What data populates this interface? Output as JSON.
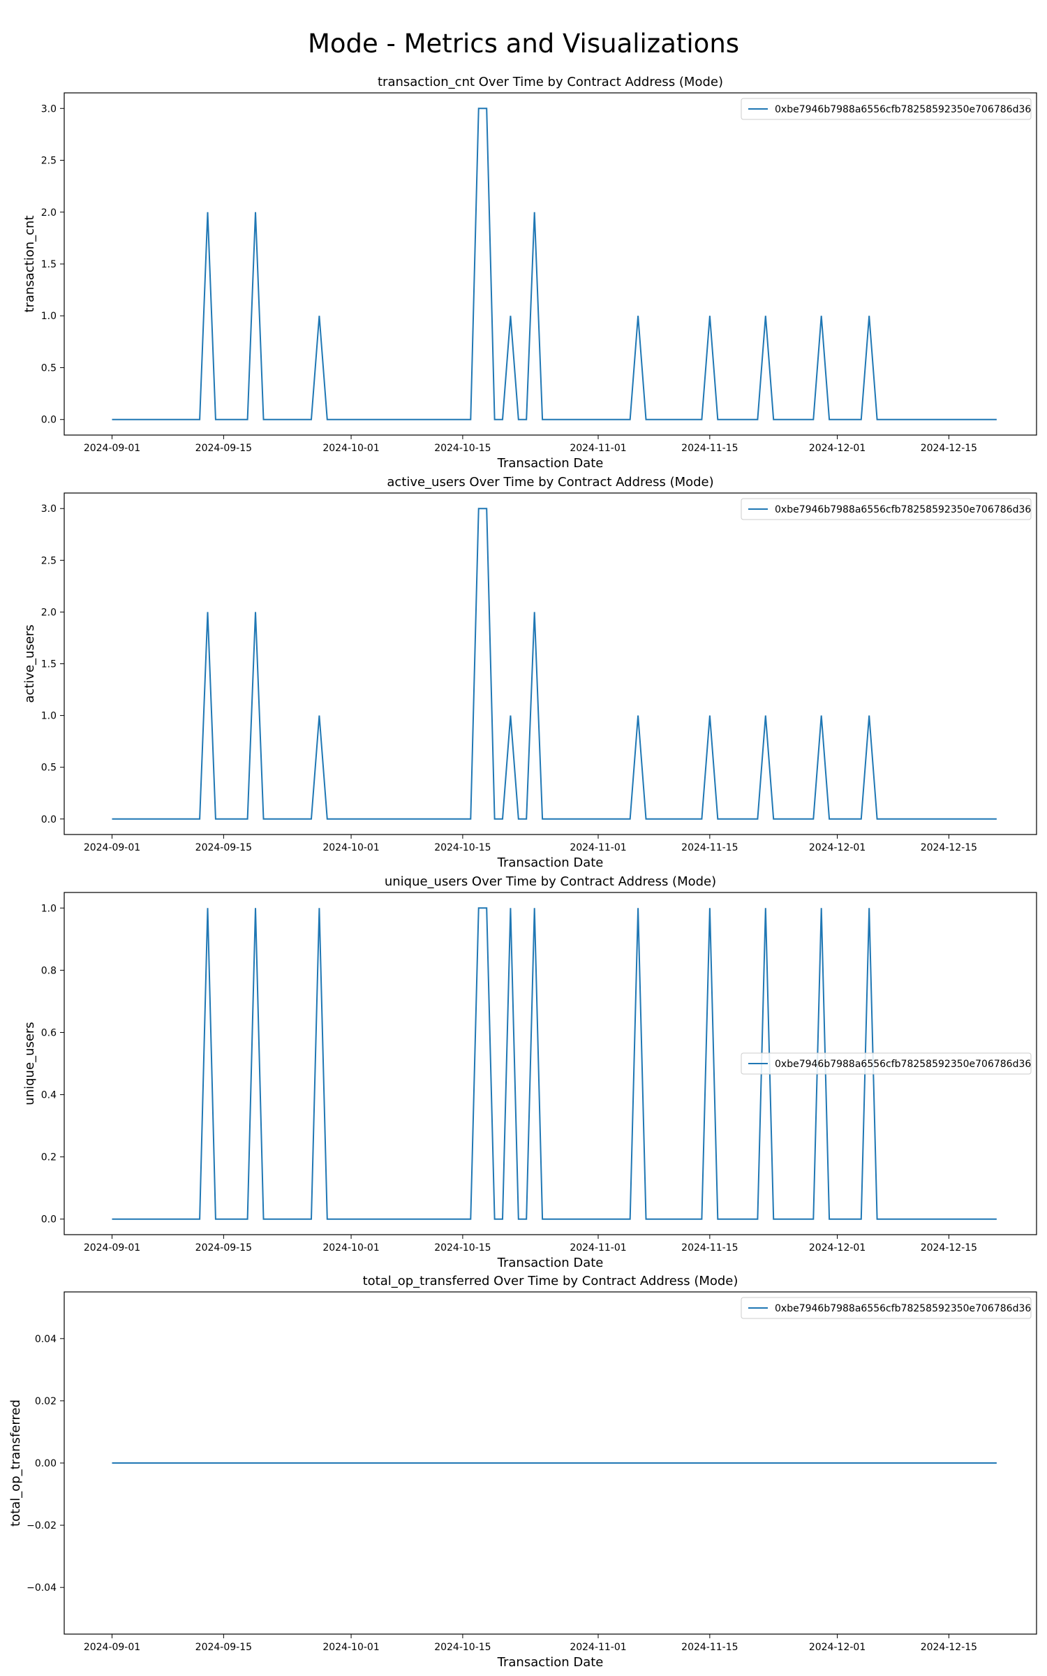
{
  "figure_title": "Mode - Metrics and Visualizations",
  "colors": {
    "series": "#1f77b4",
    "axis": "#000000",
    "legend_border": "#cccccc"
  },
  "chart_data": [
    {
      "type": "line",
      "title": "transaction_cnt Over Time by Contract Address (Mode)",
      "xlabel": "Transaction Date",
      "ylabel": "transaction_cnt",
      "x_type": "date",
      "xlim": [
        "2024-08-26",
        "2024-12-26"
      ],
      "ylim": [
        -0.15,
        3.15
      ],
      "x_ticks": [
        "2024-09-01",
        "2024-09-15",
        "2024-10-01",
        "2024-10-15",
        "2024-11-01",
        "2024-11-15",
        "2024-12-01",
        "2024-12-15"
      ],
      "y_ticks": [
        0.0,
        0.5,
        1.0,
        1.5,
        2.0,
        2.5,
        3.0
      ],
      "y_tick_labels": [
        "0.0",
        "0.5",
        "1.0",
        "1.5",
        "2.0",
        "2.5",
        "3.0"
      ],
      "grid": false,
      "legend_position": "top-right",
      "series": [
        {
          "name": "0xbe7946b7988a6556cfb78258592350e706786d36",
          "points": [
            [
              "2024-09-01",
              0
            ],
            [
              "2024-09-12",
              0
            ],
            [
              "2024-09-13",
              2
            ],
            [
              "2024-09-14",
              0
            ],
            [
              "2024-09-18",
              0
            ],
            [
              "2024-09-19",
              2
            ],
            [
              "2024-09-20",
              0
            ],
            [
              "2024-09-26",
              0
            ],
            [
              "2024-09-27",
              1
            ],
            [
              "2024-09-28",
              0
            ],
            [
              "2024-10-16",
              0
            ],
            [
              "2024-10-17",
              3
            ],
            [
              "2024-10-18",
              3
            ],
            [
              "2024-10-19",
              0
            ],
            [
              "2024-10-20",
              0
            ],
            [
              "2024-10-21",
              1
            ],
            [
              "2024-10-22",
              0
            ],
            [
              "2024-10-23",
              0
            ],
            [
              "2024-10-24",
              2
            ],
            [
              "2024-10-25",
              0
            ],
            [
              "2024-11-05",
              0
            ],
            [
              "2024-11-06",
              1
            ],
            [
              "2024-11-07",
              0
            ],
            [
              "2024-11-14",
              0
            ],
            [
              "2024-11-15",
              1
            ],
            [
              "2024-11-16",
              0
            ],
            [
              "2024-11-21",
              0
            ],
            [
              "2024-11-22",
              1
            ],
            [
              "2024-11-23",
              0
            ],
            [
              "2024-11-28",
              0
            ],
            [
              "2024-11-29",
              1
            ],
            [
              "2024-11-30",
              0
            ],
            [
              "2024-12-04",
              0
            ],
            [
              "2024-12-05",
              1
            ],
            [
              "2024-12-06",
              0
            ],
            [
              "2024-12-21",
              0
            ]
          ]
        }
      ]
    },
    {
      "type": "line",
      "title": "active_users Over Time by Contract Address (Mode)",
      "xlabel": "Transaction Date",
      "ylabel": "active_users",
      "x_type": "date",
      "xlim": [
        "2024-08-26",
        "2024-12-26"
      ],
      "ylim": [
        -0.15,
        3.15
      ],
      "x_ticks": [
        "2024-09-01",
        "2024-09-15",
        "2024-10-01",
        "2024-10-15",
        "2024-11-01",
        "2024-11-15",
        "2024-12-01",
        "2024-12-15"
      ],
      "y_ticks": [
        0.0,
        0.5,
        1.0,
        1.5,
        2.0,
        2.5,
        3.0
      ],
      "y_tick_labels": [
        "0.0",
        "0.5",
        "1.0",
        "1.5",
        "2.0",
        "2.5",
        "3.0"
      ],
      "grid": false,
      "legend_position": "top-right",
      "series": [
        {
          "name": "0xbe7946b7988a6556cfb78258592350e706786d36",
          "points": [
            [
              "2024-09-01",
              0
            ],
            [
              "2024-09-12",
              0
            ],
            [
              "2024-09-13",
              2
            ],
            [
              "2024-09-14",
              0
            ],
            [
              "2024-09-18",
              0
            ],
            [
              "2024-09-19",
              2
            ],
            [
              "2024-09-20",
              0
            ],
            [
              "2024-09-26",
              0
            ],
            [
              "2024-09-27",
              1
            ],
            [
              "2024-09-28",
              0
            ],
            [
              "2024-10-16",
              0
            ],
            [
              "2024-10-17",
              3
            ],
            [
              "2024-10-18",
              3
            ],
            [
              "2024-10-19",
              0
            ],
            [
              "2024-10-20",
              0
            ],
            [
              "2024-10-21",
              1
            ],
            [
              "2024-10-22",
              0
            ],
            [
              "2024-10-23",
              0
            ],
            [
              "2024-10-24",
              2
            ],
            [
              "2024-10-25",
              0
            ],
            [
              "2024-11-05",
              0
            ],
            [
              "2024-11-06",
              1
            ],
            [
              "2024-11-07",
              0
            ],
            [
              "2024-11-14",
              0
            ],
            [
              "2024-11-15",
              1
            ],
            [
              "2024-11-16",
              0
            ],
            [
              "2024-11-21",
              0
            ],
            [
              "2024-11-22",
              1
            ],
            [
              "2024-11-23",
              0
            ],
            [
              "2024-11-28",
              0
            ],
            [
              "2024-11-29",
              1
            ],
            [
              "2024-11-30",
              0
            ],
            [
              "2024-12-04",
              0
            ],
            [
              "2024-12-05",
              1
            ],
            [
              "2024-12-06",
              0
            ],
            [
              "2024-12-21",
              0
            ]
          ]
        }
      ]
    },
    {
      "type": "line",
      "title": "unique_users Over Time by Contract Address (Mode)",
      "xlabel": "Transaction Date",
      "ylabel": "unique_users",
      "x_type": "date",
      "xlim": [
        "2024-08-26",
        "2024-12-26"
      ],
      "ylim": [
        -0.05,
        1.05
      ],
      "x_ticks": [
        "2024-09-01",
        "2024-09-15",
        "2024-10-01",
        "2024-10-15",
        "2024-11-01",
        "2024-11-15",
        "2024-12-01",
        "2024-12-15"
      ],
      "y_ticks": [
        0.0,
        0.2,
        0.4,
        0.6,
        0.8,
        1.0
      ],
      "y_tick_labels": [
        "0.0",
        "0.2",
        "0.4",
        "0.6",
        "0.8",
        "1.0"
      ],
      "grid": false,
      "legend_position": "center-right",
      "series": [
        {
          "name": "0xbe7946b7988a6556cfb78258592350e706786d36",
          "points": [
            [
              "2024-09-01",
              0
            ],
            [
              "2024-09-12",
              0
            ],
            [
              "2024-09-13",
              1
            ],
            [
              "2024-09-14",
              0
            ],
            [
              "2024-09-18",
              0
            ],
            [
              "2024-09-19",
              1
            ],
            [
              "2024-09-20",
              0
            ],
            [
              "2024-09-26",
              0
            ],
            [
              "2024-09-27",
              1
            ],
            [
              "2024-09-28",
              0
            ],
            [
              "2024-10-16",
              0
            ],
            [
              "2024-10-17",
              1
            ],
            [
              "2024-10-18",
              1
            ],
            [
              "2024-10-19",
              0
            ],
            [
              "2024-10-20",
              0
            ],
            [
              "2024-10-21",
              1
            ],
            [
              "2024-10-22",
              0
            ],
            [
              "2024-10-23",
              0
            ],
            [
              "2024-10-24",
              1
            ],
            [
              "2024-10-25",
              0
            ],
            [
              "2024-11-05",
              0
            ],
            [
              "2024-11-06",
              1
            ],
            [
              "2024-11-07",
              0
            ],
            [
              "2024-11-14",
              0
            ],
            [
              "2024-11-15",
              1
            ],
            [
              "2024-11-16",
              0
            ],
            [
              "2024-11-21",
              0
            ],
            [
              "2024-11-22",
              1
            ],
            [
              "2024-11-23",
              0
            ],
            [
              "2024-11-28",
              0
            ],
            [
              "2024-11-29",
              1
            ],
            [
              "2024-11-30",
              0
            ],
            [
              "2024-12-04",
              0
            ],
            [
              "2024-12-05",
              1
            ],
            [
              "2024-12-06",
              0
            ],
            [
              "2024-12-21",
              0
            ]
          ]
        }
      ]
    },
    {
      "type": "line",
      "title": "total_op_transferred Over Time by Contract Address (Mode)",
      "xlabel": "Transaction Date",
      "ylabel": "total_op_transferred",
      "x_type": "date",
      "xlim": [
        "2024-08-26",
        "2024-12-26"
      ],
      "ylim": [
        -0.055,
        0.055
      ],
      "x_ticks": [
        "2024-09-01",
        "2024-09-15",
        "2024-10-01",
        "2024-10-15",
        "2024-11-01",
        "2024-11-15",
        "2024-12-01",
        "2024-12-15"
      ],
      "y_ticks": [
        -0.04,
        -0.02,
        0.0,
        0.02,
        0.04
      ],
      "y_tick_labels": [
        "−0.04",
        "−0.02",
        "0.00",
        "0.02",
        "0.04"
      ],
      "grid": false,
      "legend_position": "top-right",
      "series": [
        {
          "name": "0xbe7946b7988a6556cfb78258592350e706786d36",
          "points": [
            [
              "2024-09-01",
              0
            ],
            [
              "2024-12-21",
              0
            ]
          ]
        }
      ]
    }
  ]
}
